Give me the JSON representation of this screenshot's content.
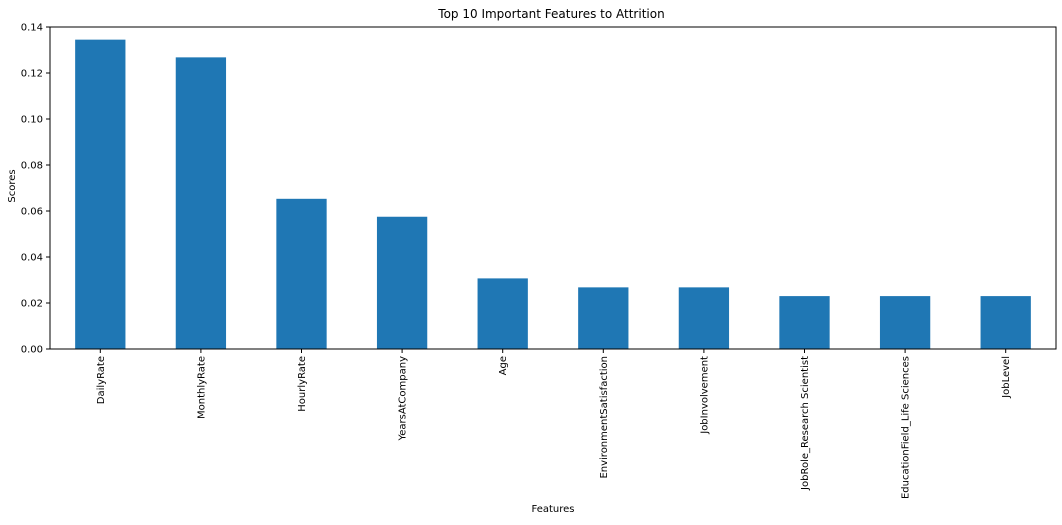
{
  "chart_data": {
    "type": "bar",
    "title": "Top 10 Important Features to Attrition",
    "xlabel": "Features",
    "ylabel": "Scores",
    "categories": [
      "DailyRate",
      "MonthlyRate",
      "HourlyRate",
      "YearsAtCompany",
      "Age",
      "EnvironmentSatisfaction",
      "JobInvolvement",
      "JobRole_Research Scientist",
      "EducationField_Life Sciences",
      "JobLevel"
    ],
    "values": [
      0.1345,
      0.1268,
      0.0653,
      0.0575,
      0.0307,
      0.0268,
      0.0268,
      0.023,
      0.023,
      0.023
    ],
    "ylim": [
      0,
      0.14
    ],
    "yticks": [
      "0.00",
      "0.02",
      "0.04",
      "0.06",
      "0.08",
      "0.10",
      "0.12",
      "0.14"
    ],
    "bar_color": "#1f77b4",
    "grid": false,
    "legend": "none"
  }
}
